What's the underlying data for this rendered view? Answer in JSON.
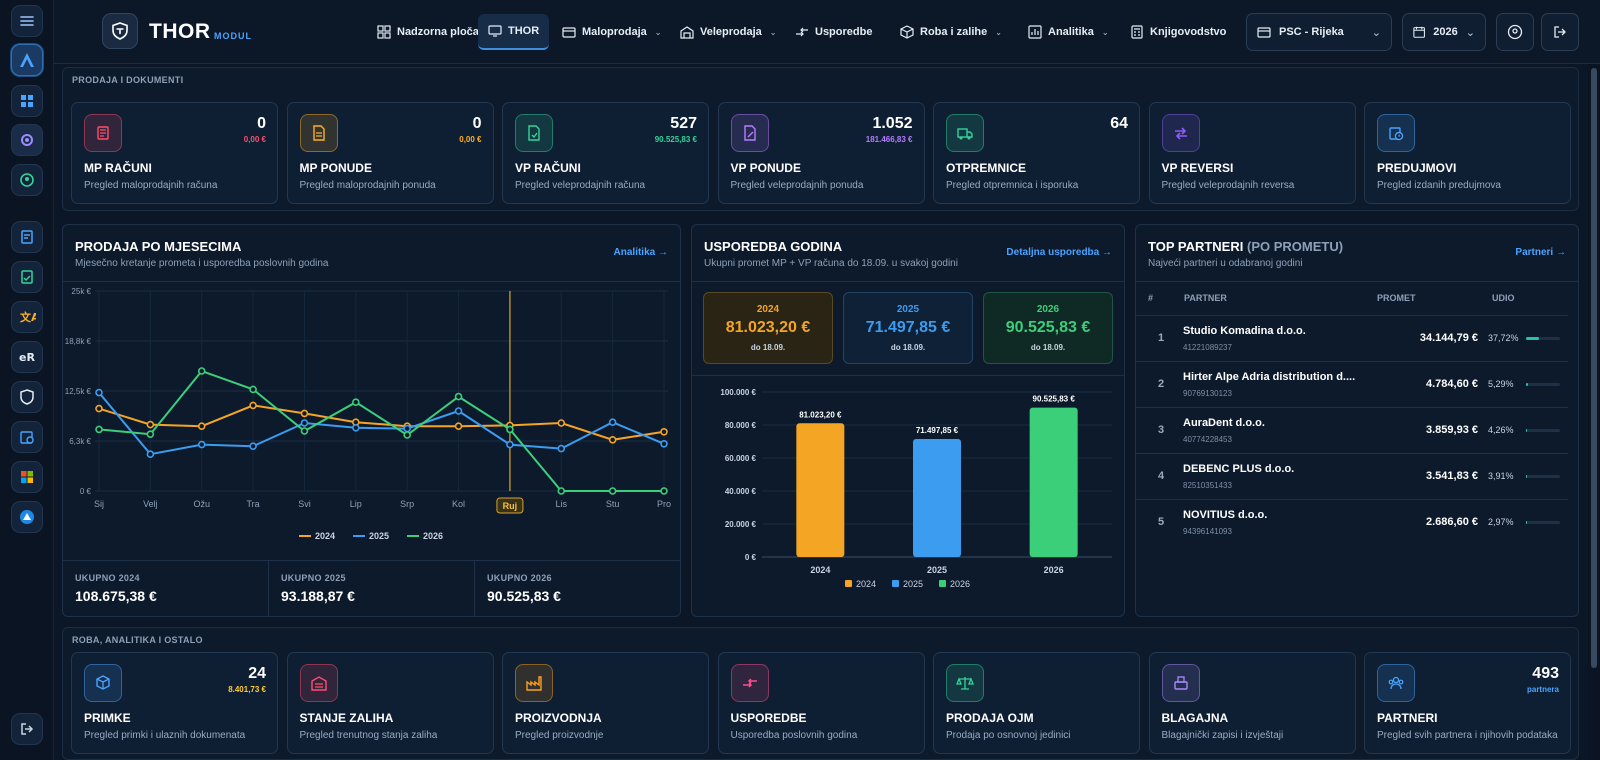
{
  "topbar": {
    "brand": "THOR",
    "brand_sub": "MODUL",
    "nav": [
      {
        "label": "Nadzorna ploča"
      },
      {
        "label": "THOR"
      },
      {
        "label": "Maloprodaja"
      },
      {
        "label": "Veleprodaja"
      },
      {
        "label": "Usporedbe"
      },
      {
        "label": "Roba i zalihe"
      },
      {
        "label": "Analitika"
      },
      {
        "label": "Knjigovodstvo"
      }
    ],
    "location": "PSC - Rijeka",
    "year": "2026"
  },
  "section1": {
    "title": "PRODAJA I DOKUMENTI",
    "cards": [
      {
        "title": "MP RAČUNI",
        "desc": "Pregled maloprodajnih računa",
        "num": "0",
        "sub": "0,00 €",
        "accent": "#ff4d6d"
      },
      {
        "title": "MP PONUDE",
        "desc": "Pregled maloprodajnih ponuda",
        "num": "0",
        "sub": "0,00 €",
        "accent": "#ffb020"
      },
      {
        "title": "VP RAČUNI",
        "desc": "Pregled veleprodajnih računa",
        "num": "527",
        "sub": "90.525,83 €",
        "accent": "#34d399"
      },
      {
        "title": "VP PONUDE",
        "desc": "Pregled veleprodajnih ponuda",
        "num": "1.052",
        "sub": "181.466,83 €",
        "accent": "#b57cff"
      },
      {
        "title": "OTPREMNICE",
        "desc": "Pregled otpremnica i isporuka",
        "num": "64",
        "sub": "",
        "accent": "#34d399"
      },
      {
        "title": "VP REVERSI",
        "desc": "Pregled veleprodajnih reversa",
        "num": "",
        "sub": "",
        "accent": "#8b5cf6"
      },
      {
        "title": "PREDUJMOVI",
        "desc": "Pregled izdanih predujmova",
        "num": "",
        "sub": "",
        "accent": "#4aa3ff"
      }
    ]
  },
  "monthly": {
    "title": "PRODAJA PO MJESECIMA",
    "subtitle": "Mjesečno kretanje prometa i usporedba poslovnih godina",
    "link": "Analitika →",
    "totals": [
      {
        "label": "UKUPNO 2024",
        "value": "108.675,38 €"
      },
      {
        "label": "UKUPNO 2025",
        "value": "93.188,87 €"
      },
      {
        "label": "UKUPNO 2026",
        "value": "90.525,83 €"
      }
    ]
  },
  "compare": {
    "title": "USPOREDBA GODINA",
    "subtitle": "Ukupni promet MP + VP računa do 18.09. u svakoj godini",
    "link": "Detaljna usporedba →",
    "boxes": [
      {
        "year": "2024",
        "amount": "81.023,20 €",
        "date": "do 18.09."
      },
      {
        "year": "2025",
        "amount": "71.497,85 €",
        "date": "do 18.09."
      },
      {
        "year": "2026",
        "amount": "90.525,83 €",
        "date": "do 18.09."
      }
    ]
  },
  "partners": {
    "title": "TOP PARTNERI",
    "title_muted": "(PO PROMETU)",
    "subtitle": "Najveći partneri u odabranoj godini",
    "link": "Partneri →",
    "headers": [
      "#",
      "PARTNER",
      "PROMET",
      "UDIO"
    ],
    "rows": [
      {
        "n": "1",
        "name": "Studio Komadina d.o.o.",
        "id": "41221089237",
        "promet": "34.144,79 €",
        "udio": "37,72%",
        "share": 0.3772
      },
      {
        "n": "2",
        "name": "Hirter Alpe Adria distribution d....",
        "id": "90769130123",
        "promet": "4.784,60 €",
        "udio": "5,29%",
        "share": 0.0529
      },
      {
        "n": "3",
        "name": "AuraDent d.o.o.",
        "id": "40774228453",
        "promet": "3.859,93 €",
        "udio": "4,26%",
        "share": 0.0426
      },
      {
        "n": "4",
        "name": "DEBENC PLUS d.o.o.",
        "id": "82510351433",
        "promet": "3.541,83 €",
        "udio": "3,91%",
        "share": 0.0391
      },
      {
        "n": "5",
        "name": "NOVITIUS d.o.o.",
        "id": "94396141093",
        "promet": "2.686,60 €",
        "udio": "2,97%",
        "share": 0.0297
      }
    ]
  },
  "section2": {
    "title": "ROBA, ANALITIKA I OSTALO",
    "cards": [
      {
        "title": "PRIMKE",
        "desc": "Pregled primki i ulaznih dokumenata",
        "num": "24",
        "sub": "8.401,73 €",
        "accent": "#4aa3ff",
        "subcolor": "#ffcc33"
      },
      {
        "title": "STANJE ZALIHA",
        "desc": "Pregled trenutnog stanja zaliha",
        "num": "",
        "sub": "",
        "accent": "#ff4d6d",
        "subcolor": ""
      },
      {
        "title": "PROIZVODNJA",
        "desc": "Pregled proizvodnje",
        "num": "",
        "sub": "",
        "accent": "#ff9f1c",
        "subcolor": ""
      },
      {
        "title": "USPOREDBE",
        "desc": "Usporedba poslovnih godina",
        "num": "",
        "sub": "",
        "accent": "#ff4d8d",
        "subcolor": ""
      },
      {
        "title": "PRODAJA OJM",
        "desc": "Prodaja po osnovnoj jedinici",
        "num": "",
        "sub": "",
        "accent": "#34d399",
        "subcolor": ""
      },
      {
        "title": "BLAGAJNA",
        "desc": "Blagajnički zapisi i izvještaji",
        "num": "",
        "sub": "",
        "accent": "#a78bfa",
        "subcolor": ""
      },
      {
        "title": "PARTNERI",
        "desc": "Pregled svih partnera i njihovih podataka",
        "num": "493",
        "sub": "partnera",
        "accent": "#4aa3ff",
        "subcolor": "#4aa3ff"
      }
    ]
  },
  "colors": {
    "c2024": "#f5a524",
    "c2025": "#3b9cf0",
    "c2026": "#3ccf7a"
  },
  "chart_data": [
    {
      "type": "line",
      "categories": [
        "Sij",
        "Velj",
        "Ožu",
        "Tra",
        "Svi",
        "Lip",
        "Srp",
        "Kol",
        "Ruj",
        "Lis",
        "Stu",
        "Pro"
      ],
      "highlight": "Ruj",
      "ylim": [
        0,
        25000
      ],
      "yticks": [
        "0 €",
        "6,3k €",
        "12,5k €",
        "18,8k €",
        "25k €"
      ],
      "series": [
        {
          "name": "2024",
          "values": [
            10300,
            8300,
            8100,
            10700,
            9700,
            8600,
            8100,
            8100,
            8200,
            8500,
            6400,
            7400
          ]
        },
        {
          "name": "2025",
          "values": [
            12300,
            4600,
            5800,
            5600,
            8500,
            7900,
            7800,
            10000,
            5800,
            5300,
            8600,
            5900
          ]
        },
        {
          "name": "2026",
          "values": [
            7700,
            7100,
            15000,
            12700,
            7500,
            11100,
            7000,
            11800,
            7700,
            0,
            0,
            0
          ]
        }
      ]
    },
    {
      "type": "bar",
      "categories": [
        "2024",
        "2025",
        "2026"
      ],
      "values": [
        81023.2,
        71497.85,
        90525.83
      ],
      "value_labels": [
        "81.023,20 €",
        "71.497,85 €",
        "90.525,83 €"
      ],
      "ylim": [
        0,
        100000
      ],
      "yticks": [
        "0 €",
        "20.000 €",
        "40.000 €",
        "60.000 €",
        "80.000 €",
        "100.000 €"
      ]
    }
  ]
}
